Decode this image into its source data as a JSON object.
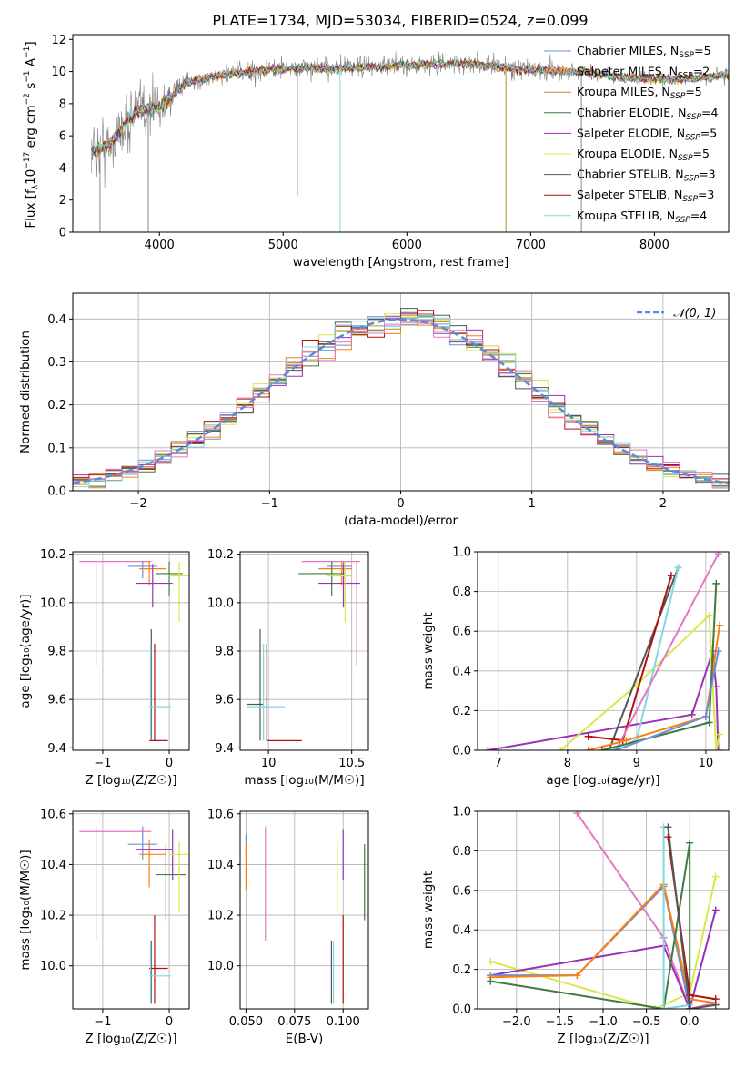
{
  "figure": {
    "title": "PLATE=1734, MJD=53034, FIBERID=0524, z=0.099"
  },
  "colors": {
    "Chabrier MILES": "#6a8fd8",
    "Salpeter MILES": "#ff7f0e",
    "Kroupa MILES": "#c08a2a",
    "Chabrier ELODIE": "#3f7a3f",
    "Salpeter ELODIE": "#9a30b8",
    "Kroupa ELODIE": "#d8e84a",
    "Chabrier STELIB": "#555555",
    "Salpeter STELIB": "#b01010",
    "Kroupa STELIB": "#7fd8e0",
    "pink": "#e377c2",
    "normal": "#5b8bd8"
  },
  "chart_data": [
    {
      "id": "spectrum",
      "type": "line",
      "title": "PLATE=1734, MJD=53034, FIBERID=0524, z=0.099",
      "xlabel": "wavelength [Angstrom, rest frame]",
      "ylabel": "Flux [f_λ 10^-17 erg cm^-2 s^-1 A^-1]",
      "xlim": [
        3300,
        8600
      ],
      "ylim": [
        0,
        12.3
      ],
      "xticks": [
        4000,
        5000,
        6000,
        7000,
        8000
      ],
      "yticks": [
        0,
        2,
        4,
        6,
        8,
        10,
        12
      ],
      "legend_position": "right",
      "legend": [
        {
          "name": "Chabrier MILES",
          "n": "5"
        },
        {
          "name": "Salpeter MILES",
          "n": "2"
        },
        {
          "name": "Kroupa MILES",
          "n": "5"
        },
        {
          "name": "Chabrier ELODIE",
          "n": "4"
        },
        {
          "name": "Salpeter ELODIE",
          "n": "5"
        },
        {
          "name": "Kroupa ELODIE",
          "n": "5"
        },
        {
          "name": "Chabrier STELIB",
          "n": "3"
        },
        {
          "name": "Salpeter STELIB",
          "n": "3"
        },
        {
          "name": "Kroupa STELIB",
          "n": "4"
        }
      ],
      "data_envelope": {
        "x": [
          3450,
          3600,
          3800,
          4000,
          4200,
          4500,
          5000,
          5500,
          6000,
          6500,
          7000,
          7400,
          7800,
          8200,
          8600
        ],
        "y": [
          5.0,
          5.5,
          7.5,
          7.8,
          9.2,
          9.8,
          10.2,
          10.2,
          10.4,
          10.5,
          10.1,
          10.0,
          9.6,
          9.5,
          9.8
        ]
      }
    },
    {
      "id": "residuals",
      "type": "histogram",
      "xlabel": "(data-model)/error",
      "ylabel": "Normed distribution",
      "xlim": [
        -2.5,
        2.5
      ],
      "ylim": [
        0,
        0.46
      ],
      "xticks": [
        -2,
        -1,
        0,
        1,
        2
      ],
      "yticks": [
        0.0,
        0.1,
        0.2,
        0.3,
        0.4
      ],
      "grid": true,
      "legend_position": "top-right",
      "curve_label": "𝒩(0, 1)"
    },
    {
      "id": "age-vs-Z",
      "type": "errorbar",
      "xlabel": "Z [log₁₀(Z/Z☉)]",
      "ylabel": "age  [log₁₀(age/yr)]",
      "xlim": [
        -1.45,
        0.3
      ],
      "ylim": [
        9.39,
        10.21
      ],
      "xticks": [
        -1,
        0
      ],
      "yticks": [
        9.4,
        9.6,
        9.8,
        10.0,
        10.2
      ],
      "points": [
        {
          "c": "pink",
          "x": -1.1,
          "y": 10.17,
          "xe": [
            -1.35,
            -0.27
          ],
          "ye": [
            9.74,
            10.17
          ]
        },
        {
          "c": "Chabrier MILES",
          "x": -0.4,
          "y": 10.15,
          "xe": [
            -0.62,
            -0.18
          ],
          "ye": [
            10.1,
            10.17
          ]
        },
        {
          "c": "Salpeter MILES",
          "x": -0.3,
          "y": 10.14,
          "xe": [
            -0.45,
            -0.05
          ],
          "ye": [
            10.07,
            10.17
          ]
        },
        {
          "c": "Salpeter ELODIE",
          "x": -0.25,
          "y": 10.08,
          "xe": [
            -0.5,
            0.05
          ],
          "ye": [
            9.98,
            10.16
          ]
        },
        {
          "c": "Chabrier ELODIE",
          "x": 0.0,
          "y": 10.12,
          "xe": [
            -0.2,
            0.2
          ],
          "ye": [
            10.03,
            10.17
          ]
        },
        {
          "c": "Kroupa ELODIE",
          "x": 0.15,
          "y": 10.11,
          "xe": [
            0.0,
            0.3
          ],
          "ye": [
            9.92,
            10.17
          ]
        },
        {
          "c": "Chabrier STELIB",
          "x": -0.27,
          "y": 9.58,
          "xe": [
            -0.27,
            -0.27
          ],
          "ye": [
            9.43,
            9.89
          ]
        },
        {
          "c": "Salpeter STELIB",
          "x": -0.22,
          "y": 9.43,
          "xe": [
            -0.3,
            -0.02
          ],
          "ye": [
            9.43,
            9.83
          ]
        },
        {
          "c": "Kroupa STELIB",
          "x": -0.28,
          "y": 9.57,
          "xe": [
            -0.3,
            0.03
          ],
          "ye": [
            9.43,
            9.83
          ]
        }
      ]
    },
    {
      "id": "age-vs-mass",
      "type": "errorbar",
      "xlabel": "mass [log₁₀(M/M☉)]",
      "ylabel": "",
      "xlim": [
        9.83,
        10.6
      ],
      "ylim": [
        9.39,
        10.21
      ],
      "xticks": [
        10.0,
        10.5
      ],
      "yticks": [
        9.4,
        9.6,
        9.8,
        10.0,
        10.2
      ],
      "points": [
        {
          "c": "pink",
          "x": 10.53,
          "y": 10.17,
          "xe": [
            10.2,
            10.55
          ],
          "ye": [
            9.74,
            10.17
          ]
        },
        {
          "c": "Chabrier MILES",
          "x": 10.45,
          "y": 10.15,
          "xe": [
            10.35,
            10.5
          ],
          "ye": [
            10.1,
            10.17
          ]
        },
        {
          "c": "Salpeter MILES",
          "x": 10.44,
          "y": 10.14,
          "xe": [
            10.3,
            10.5
          ],
          "ye": [
            10.07,
            10.17
          ]
        },
        {
          "c": "Salpeter ELODIE",
          "x": 10.45,
          "y": 10.08,
          "xe": [
            10.3,
            10.55
          ],
          "ye": [
            9.98,
            10.16
          ]
        },
        {
          "c": "Chabrier ELODIE",
          "x": 10.38,
          "y": 10.12,
          "xe": [
            10.18,
            10.45
          ],
          "ye": [
            10.03,
            10.17
          ]
        },
        {
          "c": "Kroupa ELODIE",
          "x": 10.46,
          "y": 10.11,
          "xe": [
            10.35,
            10.5
          ],
          "ye": [
            9.92,
            10.17
          ]
        },
        {
          "c": "Chabrier STELIB",
          "x": 9.95,
          "y": 9.58,
          "xe": [
            9.87,
            9.97
          ],
          "ye": [
            9.43,
            9.89
          ]
        },
        {
          "c": "Salpeter STELIB",
          "x": 9.99,
          "y": 9.43,
          "xe": [
            9.99,
            10.2
          ],
          "ye": [
            9.43,
            9.83
          ]
        },
        {
          "c": "Kroupa STELIB",
          "x": 9.97,
          "y": 9.57,
          "xe": [
            9.87,
            10.1
          ],
          "ye": [
            9.43,
            9.83
          ]
        }
      ]
    },
    {
      "id": "weight-vs-age",
      "type": "line",
      "xlabel": "age  [log₁₀(age/yr)]",
      "ylabel": "mass weight",
      "xlim": [
        6.7,
        10.33
      ],
      "ylim": [
        0,
        1
      ],
      "xticks": [
        7,
        8,
        9,
        10
      ],
      "yticks": [
        0.0,
        0.2,
        0.4,
        0.6,
        0.8,
        1.0
      ],
      "grid": true,
      "series": [
        {
          "c": "Salpeter ELODIE",
          "x": [
            6.85,
            9.8,
            10.1,
            10.15,
            10.18
          ],
          "y": [
            0.0,
            0.18,
            0.5,
            0.32,
            0.0
          ]
        },
        {
          "c": "Kroupa ELODIE",
          "x": [
            7.9,
            9.0,
            10.05,
            10.15,
            10.2
          ],
          "y": [
            0.0,
            0.33,
            0.68,
            0.0,
            0.08
          ]
        },
        {
          "c": "Chabrier STELIB",
          "x": 8.6,
          "y": 0.0,
          "xlist": [
            8.6,
            9.6
          ],
          "ylist": [
            0.0,
            0.92
          ]
        },
        {
          "c": "Salpeter STELIB",
          "x": [
            8.3,
            8.8,
            9.5
          ],
          "y": [
            0.07,
            0.05,
            0.88
          ]
        },
        {
          "c": "Kroupa STELIB",
          "x": [
            8.6,
            9.0,
            9.6
          ],
          "y": [
            0.0,
            0.05,
            0.92
          ]
        },
        {
          "c": "pink",
          "x": [
            8.7,
            10.18
          ],
          "y": [
            0.0,
            0.99
          ]
        },
        {
          "c": "Salpeter MILES",
          "x": [
            8.3,
            8.85,
            10.0,
            10.2
          ],
          "y": [
            0.0,
            0.05,
            0.17,
            0.63
          ]
        },
        {
          "c": "Chabrier ELODIE",
          "x": [
            8.5,
            10.05,
            10.15
          ],
          "y": [
            0.0,
            0.14,
            0.84
          ]
        },
        {
          "c": "Chabrier MILES",
          "x": [
            8.7,
            10.0,
            10.18
          ],
          "y": [
            0.0,
            0.17,
            0.5
          ]
        }
      ]
    },
    {
      "id": "mass-vs-Z",
      "type": "errorbar",
      "xlabel": "Z [log₁₀(Z/Z☉)]",
      "ylabel": "mass [log₁₀(M/M☉)]",
      "xlim": [
        -1.45,
        0.3
      ],
      "ylim": [
        9.83,
        10.61
      ],
      "xticks": [
        -1,
        0
      ],
      "yticks": [
        10.0,
        10.2,
        10.4,
        10.6
      ],
      "points": [
        {
          "c": "pink",
          "x": -1.1,
          "y": 10.53,
          "xe": [
            -1.35,
            -0.27
          ],
          "ye": [
            10.1,
            10.55
          ]
        },
        {
          "c": "Chabrier MILES",
          "x": -0.4,
          "y": 10.48,
          "xe": [
            -0.62,
            -0.18
          ],
          "ye": [
            10.42,
            10.55
          ]
        },
        {
          "c": "Salpeter MILES",
          "x": -0.3,
          "y": 10.44,
          "xe": [
            -0.45,
            -0.05
          ],
          "ye": [
            10.31,
            10.5
          ]
        },
        {
          "c": "Salpeter ELODIE",
          "x": 0.05,
          "y": 10.46,
          "xe": [
            -0.5,
            0.05
          ],
          "ye": [
            10.34,
            10.54
          ]
        },
        {
          "c": "Chabrier ELODIE",
          "x": -0.05,
          "y": 10.36,
          "xe": [
            -0.2,
            0.25
          ],
          "ye": [
            10.18,
            10.48
          ]
        },
        {
          "c": "Kroupa ELODIE",
          "x": 0.15,
          "y": 10.44,
          "xe": [
            0.0,
            0.3
          ],
          "ye": [
            10.21,
            10.49
          ]
        },
        {
          "c": "Chabrier STELIB",
          "x": -0.27,
          "y": 9.96,
          "xe": [
            -0.27,
            -0.27
          ],
          "ye": [
            9.85,
            10.1
          ]
        },
        {
          "c": "Salpeter STELIB",
          "x": -0.22,
          "y": 9.99,
          "xe": [
            -0.3,
            -0.02
          ],
          "ye": [
            9.85,
            10.2
          ]
        },
        {
          "c": "Kroupa STELIB",
          "x": -0.28,
          "y": 9.96,
          "xe": [
            -0.3,
            0.03
          ],
          "ye": [
            9.85,
            10.1
          ]
        }
      ]
    },
    {
      "id": "mass-vs-ebv",
      "type": "errorbar",
      "xlabel": "E(B-V)",
      "ylabel": "",
      "xlim": [
        0.047,
        0.113
      ],
      "ylim": [
        9.83,
        10.61
      ],
      "xticks": [
        0.05,
        0.075,
        0.1
      ],
      "xticklabels": [
        "0.050",
        "0.075",
        "0.100"
      ],
      "yticks": [
        10.0,
        10.2,
        10.4,
        10.6
      ],
      "points": [
        {
          "c": "Chabrier MILES",
          "x": 0.05,
          "y": 10.48,
          "xe": [
            0.05,
            0.05
          ],
          "ye": [
            10.42,
            10.52
          ]
        },
        {
          "c": "Salpeter MILES",
          "x": 0.05,
          "y": 10.4,
          "xe": [
            0.05,
            0.05
          ],
          "ye": [
            10.3,
            10.48
          ]
        },
        {
          "c": "pink",
          "x": 0.06,
          "y": 10.4,
          "xe": [
            0.06,
            0.06
          ],
          "ye": [
            10.1,
            10.55
          ]
        },
        {
          "c": "Chabrier STELIB",
          "x": 0.094,
          "y": 9.96,
          "xe": [
            0.094,
            0.094
          ],
          "ye": [
            9.85,
            10.1
          ]
        },
        {
          "c": "Kroupa STELIB",
          "x": 0.095,
          "y": 9.98,
          "xe": [
            0.095,
            0.095
          ],
          "ye": [
            9.85,
            10.1
          ]
        },
        {
          "c": "Kroupa ELODIE",
          "x": 0.097,
          "y": 10.34,
          "xe": [
            0.097,
            0.097
          ],
          "ye": [
            10.21,
            10.49
          ]
        },
        {
          "c": "Salpeter ELODIE",
          "x": 0.1,
          "y": 10.46,
          "xe": [
            0.1,
            0.1
          ],
          "ye": [
            10.34,
            10.54
          ]
        },
        {
          "c": "Salpeter STELIB",
          "x": 0.1,
          "y": 10.0,
          "xe": [
            0.1,
            0.1
          ],
          "ye": [
            9.85,
            10.2
          ]
        },
        {
          "c": "Chabrier ELODIE",
          "x": 0.111,
          "y": 10.33,
          "xe": [
            0.111,
            0.111
          ],
          "ye": [
            10.18,
            10.48
          ]
        }
      ]
    },
    {
      "id": "weight-vs-Z",
      "type": "line",
      "xlabel": "Z [log₁₀(Z/Z☉)]",
      "ylabel": "mass weight",
      "xlim": [
        -2.45,
        0.45
      ],
      "ylim": [
        0,
        1
      ],
      "xticks": [
        -2.0,
        -1.5,
        -1.0,
        -0.5,
        0.0
      ],
      "xticklabels": [
        "−2.0",
        "−1.5",
        "−1.0",
        "−0.5",
        "0.0"
      ],
      "yticks": [
        0.0,
        0.2,
        0.4,
        0.6,
        0.8,
        1.0
      ],
      "grid": true,
      "series": [
        {
          "c": "pink",
          "x": [
            -1.3,
            -0.3,
            0.0,
            0.3
          ],
          "y": [
            0.99,
            0.36,
            0.0,
            0.03
          ]
        },
        {
          "c": "Kroupa ELODIE",
          "x": [
            -2.3,
            -0.4,
            0.0,
            0.3
          ],
          "y": [
            0.24,
            0.0,
            0.08,
            0.67
          ]
        },
        {
          "c": "Salpeter ELODIE",
          "x": [
            -2.3,
            -0.3,
            0.0,
            0.3
          ],
          "y": [
            0.17,
            0.32,
            0.0,
            0.5
          ]
        },
        {
          "c": "Chabrier MILES",
          "x": [
            -2.3,
            -1.3,
            -0.3,
            0.0
          ],
          "y": [
            0.17,
            0.17,
            0.62,
            0.0
          ]
        },
        {
          "c": "Salpeter MILES",
          "x": [
            -2.3,
            -1.3,
            -0.3,
            0.0,
            0.3
          ],
          "y": [
            0.16,
            0.17,
            0.63,
            0.05,
            0.03
          ]
        },
        {
          "c": "Chabrier ELODIE",
          "x": [
            -2.3,
            -0.3,
            0.0,
            0.0
          ],
          "y": [
            0.14,
            0.0,
            0.84,
            0.0
          ]
        },
        {
          "c": "Kroupa STELIB",
          "x": [
            -0.3,
            -0.3,
            0.0
          ],
          "y": [
            0.92,
            0.0,
            0.02
          ]
        },
        {
          "c": "Salpeter STELIB",
          "x": [
            -0.25,
            0.0,
            0.3
          ],
          "y": [
            0.87,
            0.07,
            0.05
          ]
        },
        {
          "c": "Chabrier STELIB",
          "x": [
            -0.25,
            0.0,
            0.3
          ],
          "y": [
            0.92,
            0.0,
            0.02
          ]
        }
      ]
    }
  ]
}
